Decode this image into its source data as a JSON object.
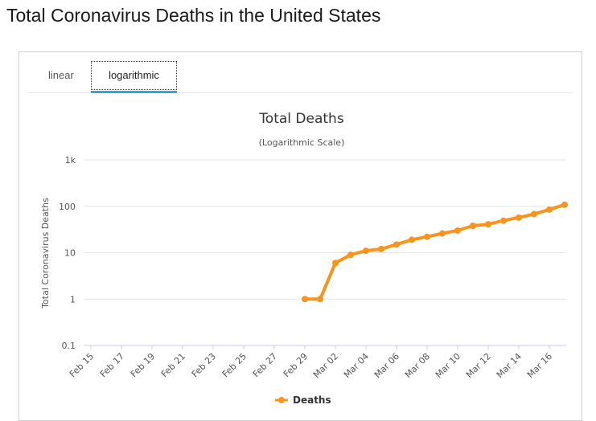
{
  "page": {
    "title": "Total Coronavirus Deaths in the United States"
  },
  "tabs": [
    {
      "label": "linear",
      "active": false
    },
    {
      "label": "logarithmic",
      "active": true
    }
  ],
  "colors": {
    "series": "#f7941d",
    "tab_underline": "#2aa8df",
    "grid": "#e6e6e6"
  },
  "chart_data": {
    "type": "line",
    "title": "Total Deaths",
    "subtitle": "(Logarithmic Scale)",
    "ylabel": "Total Coronavirus Deaths",
    "xlabel": "",
    "yscale": "log",
    "ylim": [
      0.1,
      1000
    ],
    "yticks": [
      0.1,
      1,
      10,
      100,
      1000
    ],
    "ytick_labels": [
      "0.1",
      "1",
      "10",
      "100",
      "1k"
    ],
    "x": [
      "Feb 15",
      "Feb 16",
      "Feb 17",
      "Feb 18",
      "Feb 19",
      "Feb 20",
      "Feb 21",
      "Feb 22",
      "Feb 23",
      "Feb 24",
      "Feb 25",
      "Feb 26",
      "Feb 27",
      "Feb 28",
      "Feb 29",
      "Mar 01",
      "Mar 02",
      "Mar 03",
      "Mar 04",
      "Mar 05",
      "Mar 06",
      "Mar 07",
      "Mar 08",
      "Mar 09",
      "Mar 10",
      "Mar 11",
      "Mar 12",
      "Mar 13",
      "Mar 14",
      "Mar 15",
      "Mar 16",
      "Mar 17"
    ],
    "xtick_labels": [
      "Feb 15",
      "Feb 17",
      "Feb 19",
      "Feb 21",
      "Feb 23",
      "Feb 25",
      "Feb 27",
      "Feb 29",
      "Mar 02",
      "Mar 04",
      "Mar 06",
      "Mar 08",
      "Mar 10",
      "Mar 12",
      "Mar 14",
      "Mar 16"
    ],
    "grid": true,
    "legend": "bottom-center",
    "series": [
      {
        "name": "Deaths",
        "color": "#f7941d",
        "values": [
          null,
          null,
          null,
          null,
          null,
          null,
          null,
          null,
          null,
          null,
          null,
          null,
          null,
          null,
          1,
          1,
          6,
          9,
          11,
          12,
          15,
          19,
          22,
          26,
          30,
          38,
          41,
          49,
          57,
          68,
          85,
          108
        ]
      }
    ]
  }
}
